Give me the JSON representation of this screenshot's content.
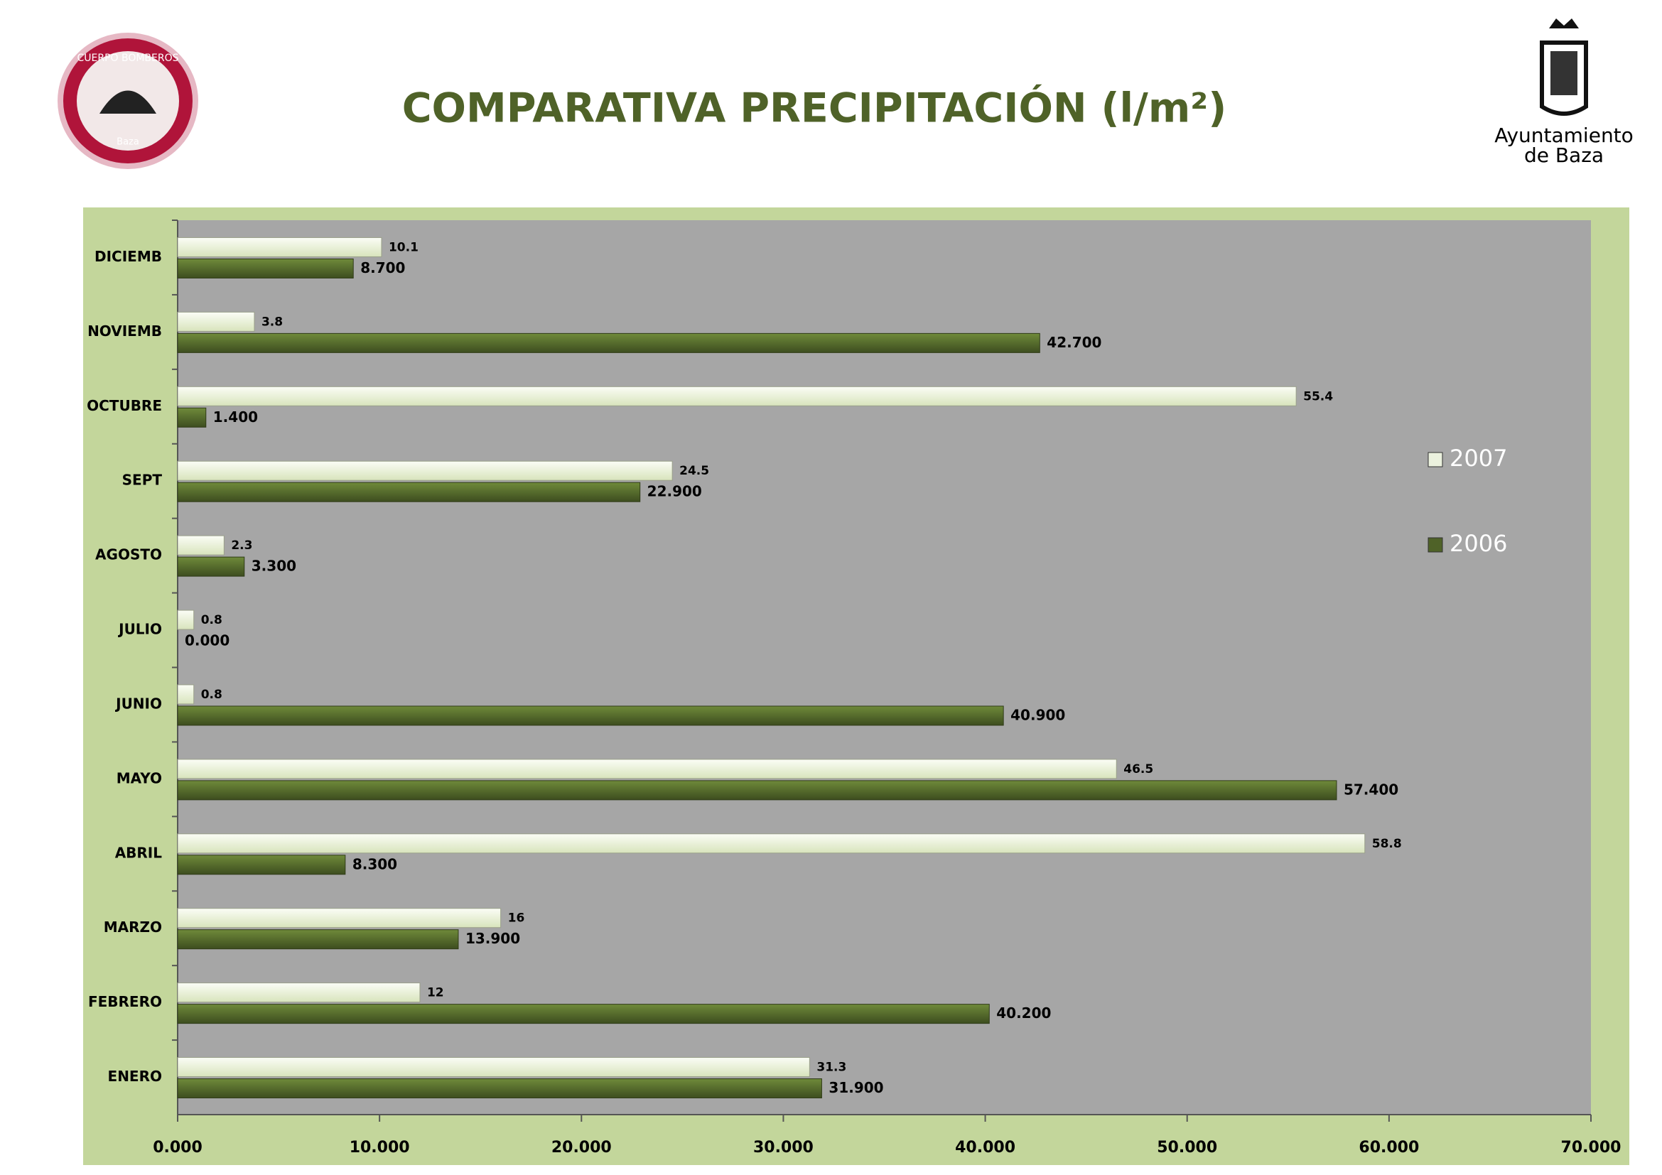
{
  "header": {
    "left_logo": [
      "CUERPO BOMBEROS",
      "Baza"
    ],
    "right_logo": [
      "Ayuntamiento",
      "de Baza"
    ]
  },
  "chart_data": {
    "type": "barh",
    "title": "COMPARATIVA PRECIPITACIÓN (l/m²)",
    "categories": [
      "ENERO",
      "FEBRERO",
      "MARZO",
      "ABRIL",
      "MAYO",
      "JUNIO",
      "JULIO",
      "AGOSTO",
      "SEPT",
      "OCTUBRE",
      "NOVIEMB",
      "DICIEMB"
    ],
    "series": [
      {
        "name": "2007",
        "color": "#ebf1de",
        "values": [
          31.3,
          12,
          16,
          58.8,
          46.5,
          0.8,
          0.8,
          2.3,
          24.5,
          55.4,
          3.8,
          10.1
        ]
      },
      {
        "name": "2006",
        "color": "#4f6228",
        "values": [
          31.9,
          40.2,
          13.9,
          8.3,
          57.4,
          40.9,
          0,
          3.3,
          22.9,
          1.4,
          42.7,
          8.7
        ],
        "value_labels": [
          "31.900",
          "40.200",
          "13.900",
          "8.300",
          "57.400",
          "40.900",
          "0.000",
          "3.300",
          "22.900",
          "1.400",
          "42.700",
          "8.700"
        ]
      }
    ],
    "xlim": [
      0,
      70
    ],
    "xticks": [
      {
        "value": 0,
        "label": "0.000"
      },
      {
        "value": 10,
        "label": "10.000"
      },
      {
        "value": 20,
        "label": "20.000"
      },
      {
        "value": 30,
        "label": "30.000"
      },
      {
        "value": 40,
        "label": "40.000"
      },
      {
        "value": 50,
        "label": "50.000"
      },
      {
        "value": 60,
        "label": "60.000"
      },
      {
        "value": 70,
        "label": "70.000"
      }
    ],
    "legend": "right"
  }
}
